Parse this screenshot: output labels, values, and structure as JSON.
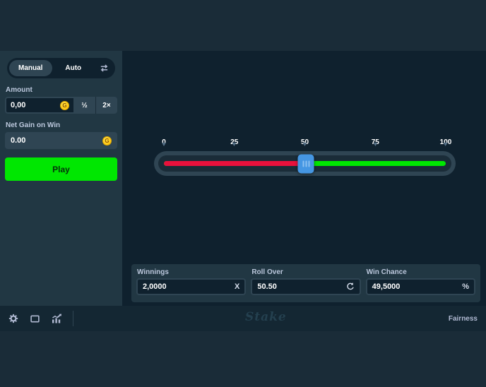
{
  "sidebar": {
    "tab_manual": "Manual",
    "tab_auto": "Auto",
    "mode_toggle_icon": "swap-arrows-icon",
    "amount_label": "Amount",
    "amount_value": "0,00",
    "half_button": "½",
    "double_button": "2×",
    "net_gain_label": "Net Gain on Win",
    "net_gain_value": "0.00",
    "play_button": "Play",
    "coin_icon": "gold-coin-icon",
    "coin_letter": "G"
  },
  "slider": {
    "tick_labels": [
      "0",
      "25",
      "50",
      "75",
      "100"
    ],
    "value_percent": 50.5
  },
  "stats": {
    "winnings_label": "Winnings",
    "winnings_value": "2,0000",
    "winnings_suffix": "X",
    "roll_over_label": "Roll Over",
    "roll_over_value": "50.50",
    "roll_over_icon": "refresh-icon",
    "win_chance_label": "Win Chance",
    "win_chance_value": "49,5000",
    "win_chance_suffix": "%"
  },
  "footer": {
    "icons": [
      "gear-icon",
      "theater-mode-icon",
      "live-stats-icon"
    ],
    "logo_text": "Stake",
    "fairness_label": "Fairness"
  },
  "colors": {
    "page_bg": "#1a2c38",
    "sidebar_bg": "#213743",
    "game_bg": "#0f212e",
    "panel_bg": "#213743",
    "border": "#2f4553",
    "green": "#00e701",
    "red": "#e9113c",
    "handle_blue": "#4596e3",
    "muted_text": "#b1bad3",
    "gold": "#ffc500"
  }
}
